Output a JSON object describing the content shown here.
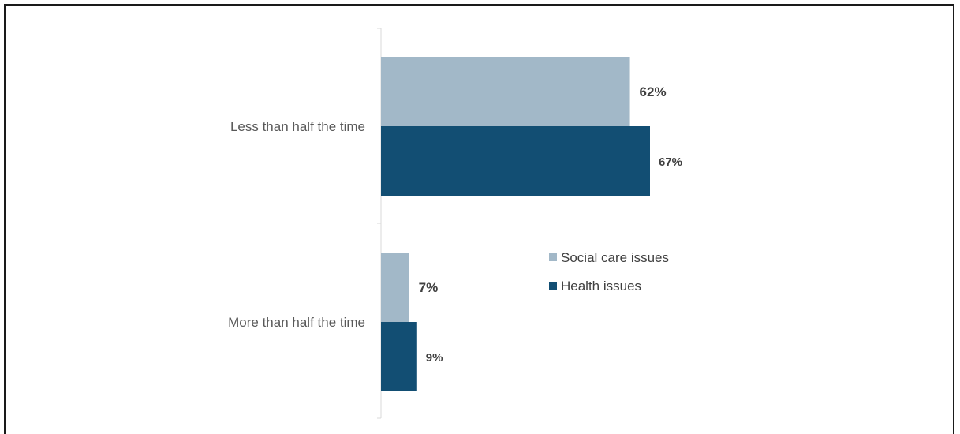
{
  "chart_data": {
    "type": "bar",
    "orientation": "horizontal",
    "categories": [
      "Less than half the time",
      "More than half the time"
    ],
    "series": [
      {
        "name": "Social care issues",
        "values": [
          62,
          7
        ],
        "color": "#a2b8c8"
      },
      {
        "name": "Health issues",
        "values": [
          67,
          9
        ],
        "color": "#124e73"
      }
    ],
    "data_labels": [
      [
        "62%",
        "67%"
      ],
      [
        "7%",
        "9%"
      ]
    ],
    "xlim": [
      0,
      100
    ],
    "grid": false,
    "legend_position": "center-right",
    "title": "",
    "xlabel": "",
    "ylabel": ""
  }
}
